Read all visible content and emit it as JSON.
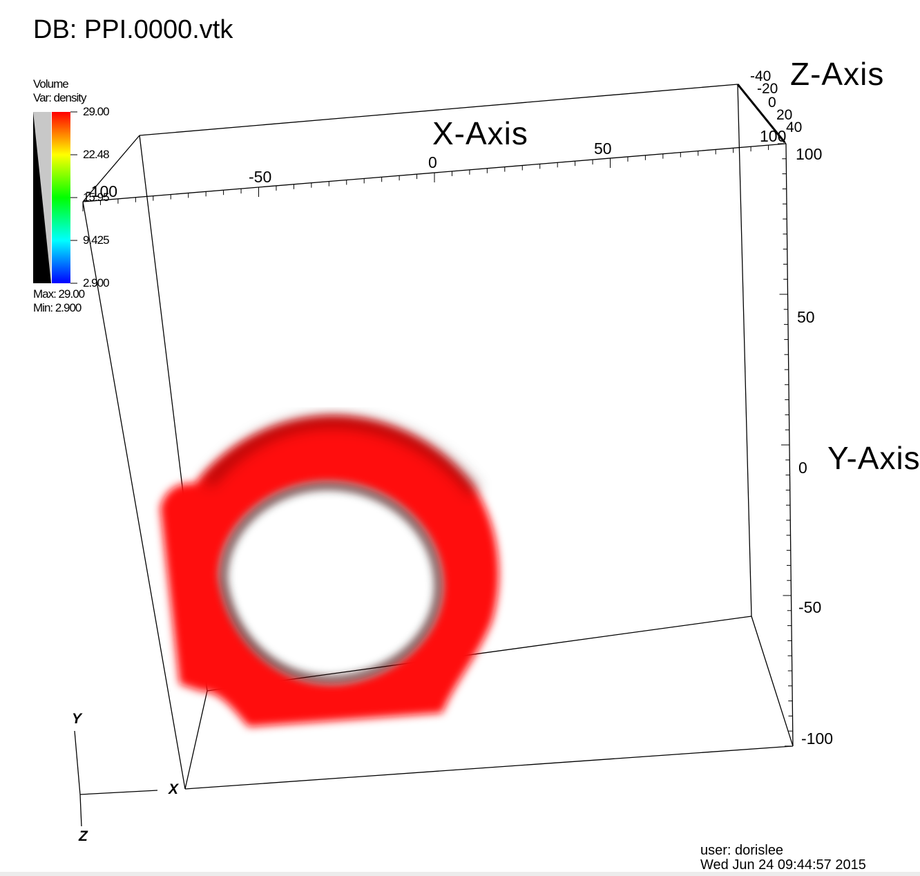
{
  "window": {
    "db_title": "DB: PPI.0000.vtk"
  },
  "legend": {
    "plot_type": "Volume",
    "variable": "Var: density",
    "ticks": [
      "29.00",
      "22.48",
      "15.95",
      "9.425",
      "2.900"
    ],
    "max_label": "Max:  29.00",
    "min_label": "Min:  2.900",
    "colors": [
      "#ff0000",
      "#ffff00",
      "#00ff00",
      "#00ffff",
      "#0000ff"
    ]
  },
  "axes": {
    "x_title": "X-Axis",
    "y_title": "Y-Axis",
    "z_title": "Z-Axis",
    "x_ticks": [
      "-100",
      "-50",
      "0",
      "50",
      "100"
    ],
    "y_ticks": [
      "100",
      "50",
      "0",
      "-50",
      "-100"
    ],
    "z_ticks": [
      "-40",
      "-20",
      "0",
      "20",
      "40"
    ]
  },
  "triad": {
    "x": "X",
    "y": "Y",
    "z": "Z"
  },
  "annotation": {
    "user": "user: dorislee",
    "date": "Wed Jun 24 09:44:57 2015"
  },
  "colors": {
    "volume": "#ff0000",
    "volume_dark": "#3a0000",
    "background": "#ffffff"
  }
}
